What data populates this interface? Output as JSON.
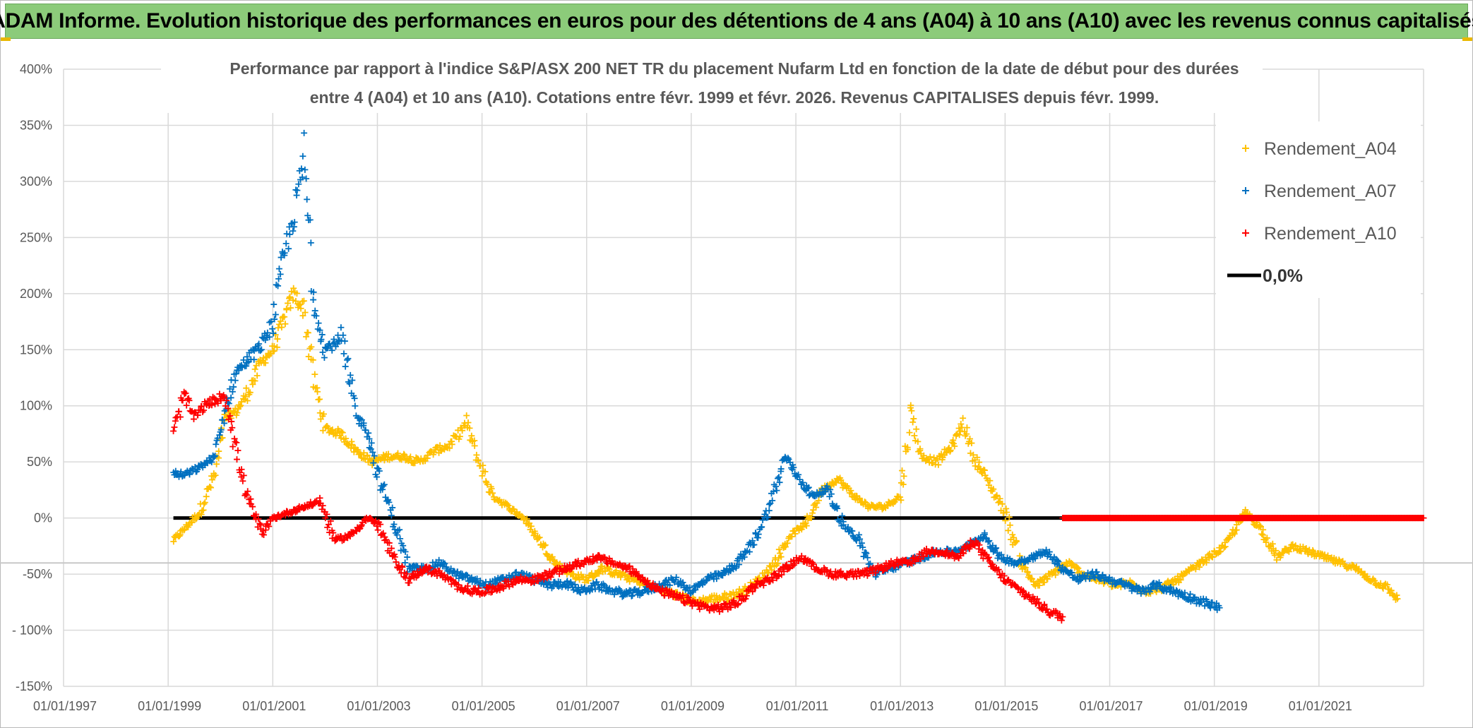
{
  "banner": {
    "title": "ADAM Informe. Evolution historique des performances en euros pour des détentions de 4 ans (A04) à 10 ans (A10) avec les revenus connus capitalisés"
  },
  "colors": {
    "banner_bg": "#8ccb7a",
    "a04": "#ffc000",
    "a07": "#0070c0",
    "a10": "#ff0000",
    "zero_line": "#000000",
    "grid": "#d9d9d9",
    "text": "#595959"
  },
  "chart_data": {
    "type": "scatter",
    "title_line1": "Performance par rapport à l'indice S&P/ASX 200 NET TR  du placement Nufarm Ltd en fonction de la date de début pour des durées",
    "title_line2": "entre 4 (A04) et 10 ans (A10). Cotations entre févr. 1999 et févr. 2026. Revenus CAPITALISES depuis févr. 1999.",
    "y_ticks": [
      "400%",
      "350%",
      "300%",
      "250%",
      "200%",
      "150%",
      "100%",
      "50%",
      "0%",
      "-50%",
      "- 100%",
      "-150%"
    ],
    "x_ticks": [
      "01/01/1997",
      "01/01/1999",
      "01/01/2001",
      "01/01/2003",
      "01/01/2005",
      "01/01/2007",
      "01/01/2009",
      "01/01/2011",
      "01/01/2013",
      "01/01/2015",
      "01/01/2017",
      "01/01/2019",
      "01/01/2021"
    ],
    "ylim": [
      -150,
      400
    ],
    "xlim": [
      1997.0,
      2023.0
    ],
    "legend_position": "top-right",
    "series": [
      {
        "name": "Rendement_A04",
        "color": "#ffc000",
        "x": [
          1999.1,
          1999.3,
          1999.6,
          1999.9,
          2000.1,
          2000.3,
          2000.5,
          2000.8,
          2001.0,
          2001.2,
          2001.4,
          2001.6,
          2001.8,
          2002.0,
          2002.3,
          2002.6,
          2002.9,
          2003.2,
          2003.5,
          2003.8,
          2004.1,
          2004.4,
          2004.7,
          2004.9,
          2005.2,
          2005.5,
          2005.8,
          2006.1,
          2006.4,
          2006.7,
          2007.0,
          2007.3,
          2007.6,
          2007.9,
          2008.2,
          2008.5,
          2008.8,
          2009.1,
          2009.4,
          2009.7,
          2010.0,
          2010.3,
          2010.6,
          2010.9,
          2011.2,
          2011.5,
          2011.8,
          2012.1,
          2012.4,
          2012.7,
          2013.0,
          2013.2,
          2013.4,
          2013.7,
          2014.0,
          2014.2,
          2014.4,
          2014.7,
          2015.0,
          2015.3,
          2015.6,
          2015.9,
          2016.2,
          2016.5,
          2016.8,
          2017.1,
          2017.4,
          2017.7,
          2018.0,
          2018.3,
          2018.6,
          2018.9,
          2019.2,
          2019.4,
          2019.6,
          2019.9,
          2020.2,
          2020.5,
          2020.8,
          2021.1,
          2021.4,
          2021.7,
          2022.0,
          2022.3,
          2022.5
        ],
        "y": [
          -20,
          -10,
          5,
          40,
          90,
          95,
          110,
          140,
          150,
          175,
          200,
          185,
          120,
          80,
          75,
          60,
          50,
          55,
          55,
          50,
          60,
          65,
          85,
          55,
          20,
          10,
          0,
          -20,
          -40,
          -50,
          -55,
          -45,
          -50,
          -55,
          -60,
          -65,
          -70,
          -75,
          -72,
          -70,
          -65,
          -55,
          -40,
          -15,
          -5,
          25,
          35,
          20,
          10,
          10,
          20,
          95,
          55,
          50,
          65,
          85,
          55,
          30,
          5,
          -40,
          -60,
          -50,
          -40,
          -50,
          -55,
          -60,
          -58,
          -65,
          -62,
          -55,
          -45,
          -35,
          -25,
          -10,
          5,
          -10,
          -35,
          -25,
          -30,
          -35,
          -40,
          -45,
          -55,
          -62,
          -72
        ]
      },
      {
        "name": "Rendement_A07",
        "color": "#0070c0",
        "x": [
          1999.1,
          1999.3,
          1999.6,
          1999.9,
          2000.1,
          2000.3,
          2000.5,
          2000.8,
          2001.0,
          2001.2,
          2001.4,
          2001.6,
          2001.8,
          2002.0,
          2002.3,
          2002.6,
          2002.8,
          2003.0,
          2003.3,
          2003.6,
          2003.9,
          2004.2,
          2004.5,
          2004.8,
          2005.1,
          2005.4,
          2005.7,
          2006.0,
          2006.3,
          2006.6,
          2006.9,
          2007.2,
          2007.5,
          2007.8,
          2008.1,
          2008.4,
          2008.7,
          2009.0,
          2009.3,
          2009.6,
          2009.9,
          2010.2,
          2010.5,
          2010.8,
          2011.0,
          2011.3,
          2011.6,
          2011.9,
          2012.2,
          2012.5,
          2012.8,
          2013.1,
          2013.4,
          2013.7,
          2014.0,
          2014.3,
          2014.6,
          2014.9,
          2015.2,
          2015.5,
          2015.8,
          2016.1,
          2016.4,
          2016.7,
          2017.0,
          2017.3,
          2017.6,
          2017.9,
          2018.2,
          2018.5,
          2018.8,
          2019.1
        ],
        "y": [
          40,
          38,
          45,
          55,
          100,
          130,
          140,
          155,
          175,
          230,
          270,
          320,
          190,
          150,
          160,
          90,
          80,
          40,
          0,
          -45,
          -45,
          -40,
          -50,
          -55,
          -60,
          -55,
          -50,
          -55,
          -60,
          -58,
          -65,
          -60,
          -65,
          -68,
          -65,
          -60,
          -55,
          -65,
          -55,
          -50,
          -40,
          -20,
          10,
          55,
          40,
          20,
          25,
          -5,
          -20,
          -50,
          -45,
          -40,
          -35,
          -30,
          -30,
          -25,
          -15,
          -35,
          -40,
          -35,
          -30,
          -45,
          -55,
          -50,
          -55,
          -60,
          -65,
          -60,
          -65,
          -70,
          -75,
          -80
        ]
      },
      {
        "name": "Rendement_A10",
        "color": "#ff0000",
        "x": [
          1999.1,
          1999.3,
          1999.5,
          1999.7,
          1999.9,
          2000.1,
          2000.3,
          2000.5,
          2000.8,
          2001.0,
          2001.3,
          2001.6,
          2001.9,
          2002.2,
          2002.5,
          2002.8,
          2003.0,
          2003.3,
          2003.6,
          2003.9,
          2004.2,
          2004.5,
          2004.8,
          2005.1,
          2005.4,
          2005.7,
          2006.0,
          2006.3,
          2006.6,
          2006.9,
          2007.2,
          2007.5,
          2007.8,
          2008.1,
          2008.4,
          2008.7,
          2009.0,
          2009.3,
          2009.6,
          2009.9,
          2010.2,
          2010.5,
          2010.8,
          2011.1,
          2011.4,
          2011.7,
          2012.0,
          2012.3,
          2012.6,
          2012.9,
          2013.2,
          2013.5,
          2013.8,
          2014.1,
          2014.4,
          2014.7,
          2015.0,
          2015.3,
          2015.6,
          2015.9,
          2016.1
        ],
        "y": [
          75,
          110,
          90,
          100,
          105,
          110,
          60,
          20,
          -15,
          0,
          5,
          10,
          15,
          -20,
          -15,
          0,
          -5,
          -35,
          -55,
          -45,
          -50,
          -60,
          -65,
          -65,
          -60,
          -55,
          -55,
          -50,
          -45,
          -40,
          -35,
          -40,
          -45,
          -55,
          -65,
          -70,
          -75,
          -80,
          -80,
          -75,
          -60,
          -55,
          -45,
          -35,
          -45,
          -50,
          -50,
          -50,
          -45,
          -40,
          -40,
          -30,
          -30,
          -35,
          -20,
          -40,
          -55,
          -65,
          -75,
          -85,
          -88
        ]
      },
      {
        "name": "Rendement_A10_zero",
        "legend": false,
        "color": "#ff0000",
        "x_start": 2016.1,
        "x_end": 2023.0,
        "y": 0
      }
    ],
    "legend": [
      {
        "label": "Rendement_A04",
        "color": "#ffc000",
        "marker": "+"
      },
      {
        "label": "Rendement_A07",
        "color": "#0070c0",
        "marker": "+"
      },
      {
        "label": "Rendement_A10",
        "color": "#ff0000",
        "marker": "+"
      },
      {
        "label": "0,0%",
        "color": "#000000",
        "marker": "line"
      }
    ],
    "reference_line": {
      "y": 0,
      "x_start": 1999.1,
      "x_end": 2023.0,
      "color": "#000000"
    }
  }
}
